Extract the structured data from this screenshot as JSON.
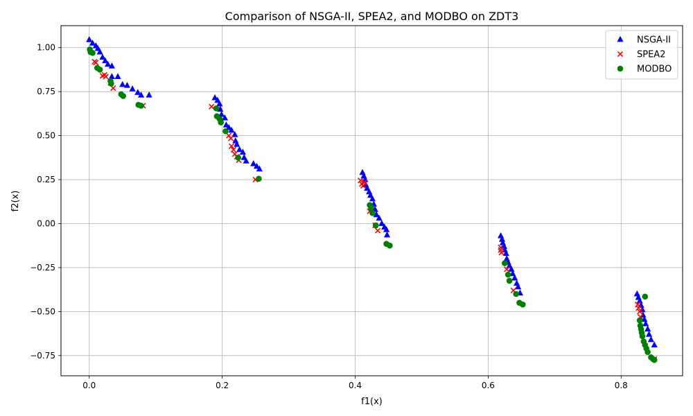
{
  "chart_data": {
    "type": "scatter",
    "title": "Comparison of NSGA-II, SPEA2, and MODBO on ZDT3",
    "xlabel": "f1(x)",
    "ylabel": "f2(x)",
    "xlim": [
      -0.0425,
      0.8925
    ],
    "ylim": [
      -0.865,
      1.125
    ],
    "grid": true,
    "legend_position": "top-right",
    "x_ticks": [
      0.0,
      0.2,
      0.4,
      0.6,
      0.8
    ],
    "x_tick_labels": [
      "0.0",
      "0.2",
      "0.4",
      "0.6",
      "0.8"
    ],
    "y_ticks": [
      -0.75,
      -0.5,
      -0.25,
      0.0,
      0.25,
      0.5,
      0.75,
      1.0
    ],
    "y_tick_labels": [
      "−0.75",
      "−0.50",
      "−0.25",
      "0.00",
      "0.25",
      "0.50",
      "0.75",
      "1.00"
    ],
    "series": [
      {
        "name": "NSGA-II",
        "marker": "triangle",
        "color": "#0000ff",
        "points": [
          [
            0.0,
            1.045
          ],
          [
            0.005,
            1.025
          ],
          [
            0.01,
            1.01
          ],
          [
            0.013,
            0.995
          ],
          [
            0.016,
            0.975
          ],
          [
            0.02,
            0.945
          ],
          [
            0.024,
            0.925
          ],
          [
            0.028,
            0.905
          ],
          [
            0.034,
            0.895
          ],
          [
            0.034,
            0.835
          ],
          [
            0.043,
            0.835
          ],
          [
            0.05,
            0.79
          ],
          [
            0.057,
            0.785
          ],
          [
            0.065,
            0.765
          ],
          [
            0.073,
            0.745
          ],
          [
            0.078,
            0.73
          ],
          [
            0.09,
            0.73
          ],
          [
            0.189,
            0.715
          ],
          [
            0.193,
            0.7
          ],
          [
            0.196,
            0.68
          ],
          [
            0.197,
            0.65
          ],
          [
            0.199,
            0.62
          ],
          [
            0.204,
            0.6
          ],
          [
            0.206,
            0.56
          ],
          [
            0.21,
            0.545
          ],
          [
            0.214,
            0.53
          ],
          [
            0.219,
            0.505
          ],
          [
            0.22,
            0.47
          ],
          [
            0.222,
            0.45
          ],
          [
            0.226,
            0.42
          ],
          [
            0.231,
            0.405
          ],
          [
            0.233,
            0.375
          ],
          [
            0.236,
            0.355
          ],
          [
            0.247,
            0.34
          ],
          [
            0.252,
            0.325
          ],
          [
            0.256,
            0.31
          ],
          [
            0.411,
            0.29
          ],
          [
            0.413,
            0.27
          ],
          [
            0.415,
            0.25
          ],
          [
            0.416,
            0.22
          ],
          [
            0.418,
            0.2
          ],
          [
            0.421,
            0.18
          ],
          [
            0.423,
            0.16
          ],
          [
            0.426,
            0.14
          ],
          [
            0.428,
            0.11
          ],
          [
            0.43,
            0.08
          ],
          [
            0.432,
            0.05
          ],
          [
            0.436,
            0.03
          ],
          [
            0.44,
            0.0
          ],
          [
            0.444,
            -0.02
          ],
          [
            0.447,
            -0.035
          ],
          [
            0.448,
            -0.065
          ],
          [
            0.619,
            -0.07
          ],
          [
            0.621,
            -0.09
          ],
          [
            0.622,
            -0.11
          ],
          [
            0.624,
            -0.13
          ],
          [
            0.625,
            -0.15
          ],
          [
            0.627,
            -0.17
          ],
          [
            0.628,
            -0.2
          ],
          [
            0.63,
            -0.22
          ],
          [
            0.632,
            -0.24
          ],
          [
            0.635,
            -0.26
          ],
          [
            0.637,
            -0.285
          ],
          [
            0.64,
            -0.31
          ],
          [
            0.643,
            -0.34
          ],
          [
            0.645,
            -0.36
          ],
          [
            0.648,
            -0.395
          ],
          [
            0.824,
            -0.4
          ],
          [
            0.826,
            -0.42
          ],
          [
            0.828,
            -0.44
          ],
          [
            0.83,
            -0.465
          ],
          [
            0.832,
            -0.49
          ],
          [
            0.833,
            -0.52
          ],
          [
            0.835,
            -0.545
          ],
          [
            0.837,
            -0.57
          ],
          [
            0.84,
            -0.6
          ],
          [
            0.842,
            -0.63
          ],
          [
            0.845,
            -0.66
          ],
          [
            0.85,
            -0.69
          ]
        ]
      },
      {
        "name": "SPEA2",
        "marker": "x",
        "color": "#ff0000",
        "points": [
          [
            0.008,
            0.92
          ],
          [
            0.01,
            0.915
          ],
          [
            0.02,
            0.84
          ],
          [
            0.023,
            0.845
          ],
          [
            0.025,
            0.835
          ],
          [
            0.032,
            0.8
          ],
          [
            0.036,
            0.77
          ],
          [
            0.081,
            0.67
          ],
          [
            0.184,
            0.665
          ],
          [
            0.21,
            0.5
          ],
          [
            0.213,
            0.485
          ],
          [
            0.214,
            0.44
          ],
          [
            0.217,
            0.42
          ],
          [
            0.219,
            0.395
          ],
          [
            0.222,
            0.38
          ],
          [
            0.225,
            0.36
          ],
          [
            0.25,
            0.25
          ],
          [
            0.408,
            0.245
          ],
          [
            0.41,
            0.225
          ],
          [
            0.412,
            0.215
          ],
          [
            0.414,
            0.235
          ],
          [
            0.422,
            0.07
          ],
          [
            0.43,
            -0.01
          ],
          [
            0.434,
            -0.04
          ],
          [
            0.619,
            -0.135
          ],
          [
            0.619,
            -0.15
          ],
          [
            0.62,
            -0.165
          ],
          [
            0.628,
            -0.26
          ],
          [
            0.638,
            -0.38
          ],
          [
            0.825,
            -0.46
          ],
          [
            0.826,
            -0.48
          ],
          [
            0.828,
            -0.5
          ],
          [
            0.829,
            -0.53
          ],
          [
            0.85,
            -0.77
          ]
        ]
      },
      {
        "name": "MODBO",
        "marker": "circle",
        "color": "#008000",
        "points": [
          [
            0.001,
            0.99
          ],
          [
            0.002,
            0.975
          ],
          [
            0.005,
            0.97
          ],
          [
            0.012,
            0.885
          ],
          [
            0.016,
            0.875
          ],
          [
            0.032,
            0.81
          ],
          [
            0.033,
            0.795
          ],
          [
            0.048,
            0.735
          ],
          [
            0.051,
            0.725
          ],
          [
            0.074,
            0.675
          ],
          [
            0.078,
            0.67
          ],
          [
            0.191,
            0.655
          ],
          [
            0.192,
            0.61
          ],
          [
            0.196,
            0.595
          ],
          [
            0.198,
            0.575
          ],
          [
            0.205,
            0.525
          ],
          [
            0.224,
            0.375
          ],
          [
            0.255,
            0.255
          ],
          [
            0.422,
            0.105
          ],
          [
            0.424,
            0.09
          ],
          [
            0.426,
            0.06
          ],
          [
            0.431,
            -0.01
          ],
          [
            0.447,
            -0.115
          ],
          [
            0.452,
            -0.125
          ],
          [
            0.625,
            -0.225
          ],
          [
            0.63,
            -0.29
          ],
          [
            0.632,
            -0.325
          ],
          [
            0.642,
            -0.4
          ],
          [
            0.647,
            -0.45
          ],
          [
            0.652,
            -0.46
          ],
          [
            0.828,
            -0.55
          ],
          [
            0.829,
            -0.58
          ],
          [
            0.83,
            -0.6
          ],
          [
            0.831,
            -0.62
          ],
          [
            0.832,
            -0.64
          ],
          [
            0.834,
            -0.67
          ],
          [
            0.836,
            -0.69
          ],
          [
            0.838,
            -0.71
          ],
          [
            0.84,
            -0.73
          ],
          [
            0.845,
            -0.76
          ],
          [
            0.848,
            -0.77
          ],
          [
            0.85,
            -0.775
          ],
          [
            0.836,
            -0.415
          ]
        ]
      }
    ]
  }
}
